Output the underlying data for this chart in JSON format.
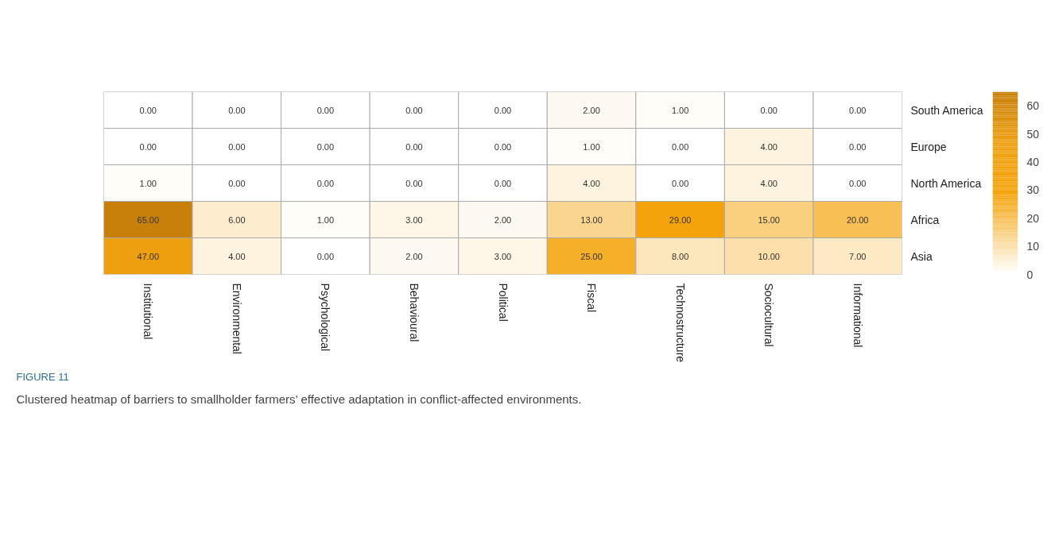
{
  "chart_data": {
    "type": "heatmap",
    "categories": [
      "Institutional",
      "Environmental",
      "Psychological",
      "Behavioural",
      "Political",
      "Fiscal",
      "Technostructure",
      "Sociocultural",
      "Informational"
    ],
    "y_categories": [
      "South America",
      "Europe",
      "North America",
      "Africa",
      "Asia"
    ],
    "cells": [
      [
        0,
        0,
        0,
        0,
        0,
        2,
        1,
        0,
        0
      ],
      [
        0,
        0,
        0,
        0,
        0,
        1,
        0,
        4,
        0
      ],
      [
        1,
        0,
        0,
        0,
        0,
        4,
        0,
        4,
        0
      ],
      [
        65,
        6,
        1,
        3,
        2,
        13,
        29,
        15,
        20
      ],
      [
        47,
        4,
        0,
        2,
        3,
        25,
        8,
        10,
        7
      ]
    ],
    "cell_labels": [
      [
        "0.00",
        "0.00",
        "0.00",
        "0.00",
        "0.00",
        "2.00",
        "1.00",
        "0.00",
        "0.00"
      ],
      [
        "0.00",
        "0.00",
        "0.00",
        "0.00",
        "0.00",
        "1.00",
        "0.00",
        "4.00",
        "0.00"
      ],
      [
        "1.00",
        "0.00",
        "0.00",
        "0.00",
        "0.00",
        "4.00",
        "0.00",
        "4.00",
        "0.00"
      ],
      [
        "65.00",
        "6.00",
        "1.00",
        "3.00",
        "2.00",
        "13.00",
        "29.00",
        "15.00",
        "20.00"
      ],
      [
        "47.00",
        "4.00",
        "0.00",
        "2.00",
        "3.00",
        "25.00",
        "8.00",
        "10.00",
        "7.00"
      ]
    ],
    "clim": [
      0,
      65
    ],
    "cticks": [
      0,
      10,
      20,
      30,
      40,
      50,
      60
    ],
    "annotations": [
      "FIGURE 11",
      "Clustered heatmap of barriers to smallholder farmers’ effective adaptation in conflict-affected environments."
    ]
  }
}
